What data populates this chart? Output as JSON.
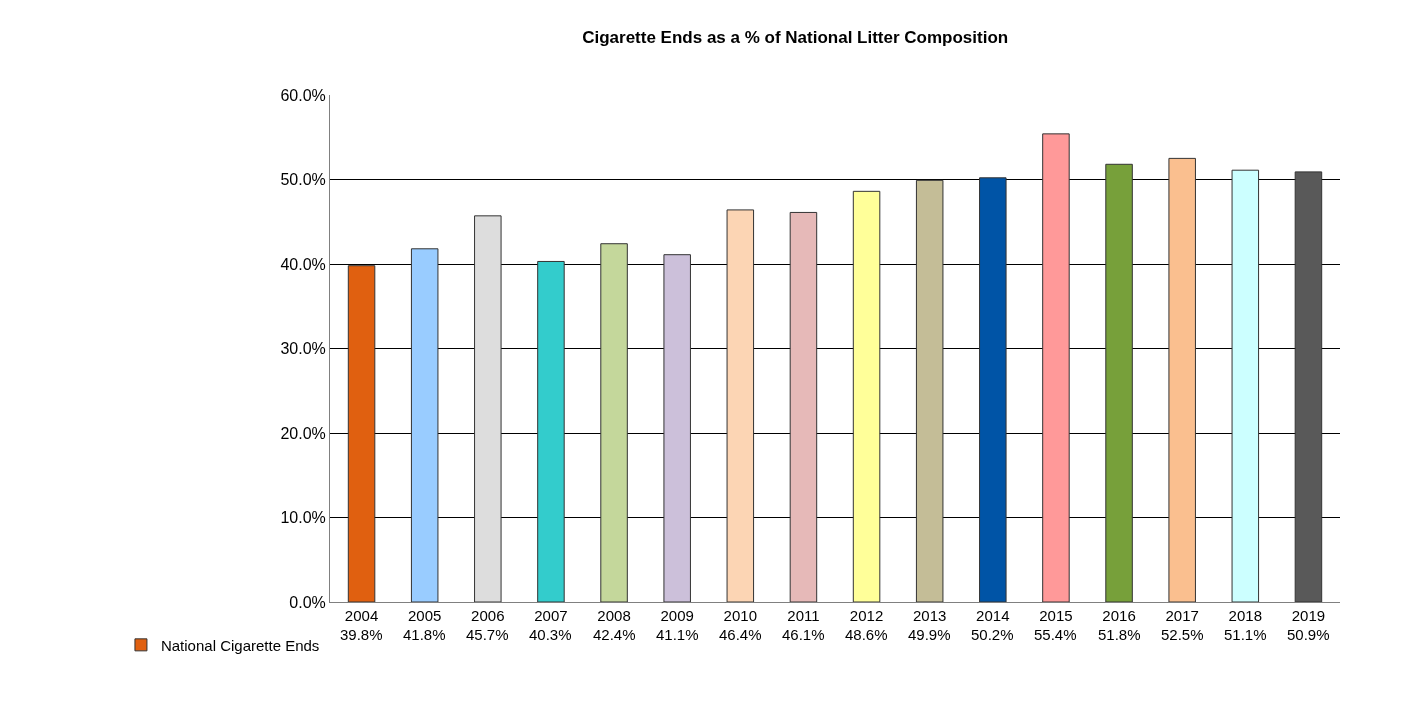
{
  "chart_data": {
    "type": "bar",
    "title": "Cigarette Ends as a % of National Litter Composition",
    "categories": [
      "2004",
      "2005",
      "2006",
      "2007",
      "2008",
      "2009",
      "2010",
      "2011",
      "2012",
      "2013",
      "2014",
      "2015",
      "2016",
      "2017",
      "2018",
      "2019"
    ],
    "series": [
      {
        "name": "National Cigarette Ends",
        "values": [
          39.8,
          41.8,
          45.7,
          40.3,
          42.4,
          41.1,
          46.4,
          46.1,
          48.6,
          49.9,
          50.2,
          55.4,
          51.8,
          52.5,
          51.1,
          50.9
        ],
        "colors": [
          "#e06010",
          "#99ccff",
          "#dddddd",
          "#33cccc",
          "#c4d79b",
          "#ccc0da",
          "#fcd5b4",
          "#e6b9b8",
          "#ffff99",
          "#c4bd97",
          "#0054a6",
          "#ff9999",
          "#77a03a",
          "#fabf8f",
          "#ccffff",
          "#595959"
        ],
        "value_labels": [
          "39.8%",
          "41.8%",
          "45.7%",
          "40.3%",
          "42.4%",
          "41.1%",
          "46.4%",
          "46.1%",
          "48.6%",
          "49.9%",
          "50.2%",
          "55.4%",
          "51.8%",
          "52.5%",
          "51.1%",
          "50.9%"
        ]
      }
    ],
    "ylim": [
      0,
      60
    ],
    "yticks": [
      {
        "value": 0,
        "label": "0.0%"
      },
      {
        "value": 10,
        "label": "10.0%"
      },
      {
        "value": 20,
        "label": "20.0%"
      },
      {
        "value": 30,
        "label": "30.0%"
      },
      {
        "value": 40,
        "label": "40.0%"
      },
      {
        "value": 50,
        "label": "50.0%"
      },
      {
        "value": 60,
        "label": "60.0%"
      }
    ],
    "grid": "y",
    "legend": "bottom left"
  }
}
